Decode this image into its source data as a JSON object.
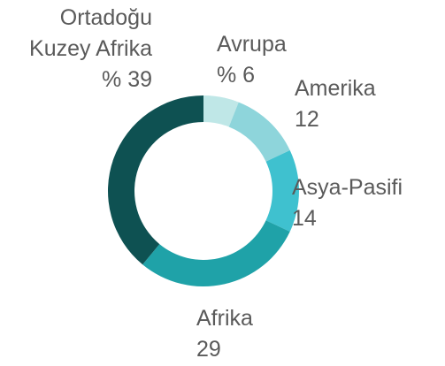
{
  "chart_data": {
    "type": "donut",
    "categories": [
      "Avrupa",
      "Amerika",
      "Asya-Pasifi",
      "Afrika",
      "Ortadoğu Kuzey Afrika"
    ],
    "values": [
      6,
      12,
      14,
      29,
      39
    ],
    "value_labels": [
      "% 6",
      "12",
      "14",
      "29",
      "% 39"
    ],
    "colors": [
      "#bfe7e7",
      "#8ed5db",
      "#3fc1cf",
      "#1fa2a8",
      "#0e5152"
    ]
  }
}
